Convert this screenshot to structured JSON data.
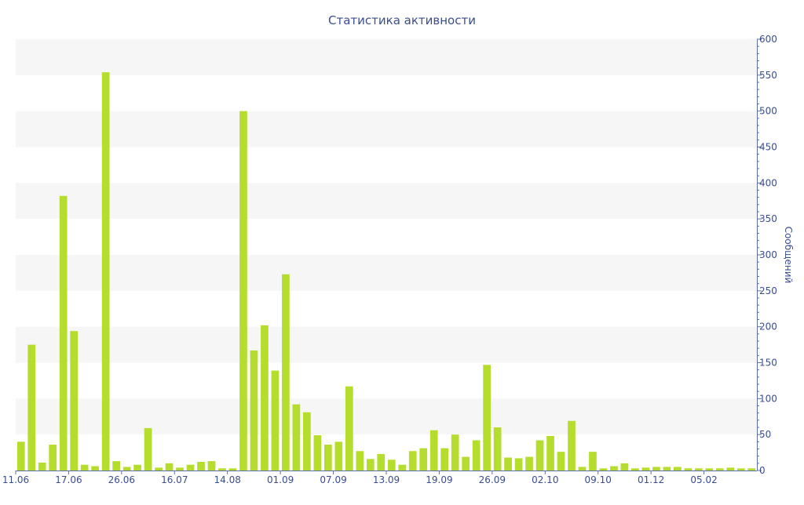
{
  "chart_data": {
    "type": "bar",
    "title": "Статистика активности",
    "xlabel": "",
    "ylabel": "Сообщений",
    "ylim": [
      0,
      600
    ],
    "y_ticks": [
      0,
      50,
      100,
      150,
      200,
      250,
      300,
      350,
      400,
      450,
      500,
      550,
      600
    ],
    "y_axis_side": "right",
    "grid": "alternating horizontal bands",
    "x_tick_labels": [
      "11.06",
      "17.06",
      "26.06",
      "16.07",
      "14.08",
      "01.09",
      "07.09",
      "13.09",
      "19.09",
      "26.09",
      "02.10",
      "09.10",
      "01.12",
      "05.02"
    ],
    "values": [
      40,
      175,
      11,
      36,
      382,
      194,
      8,
      6,
      554,
      13,
      5,
      8,
      59,
      4,
      10,
      4,
      8,
      12,
      13,
      3,
      3,
      500,
      167,
      202,
      139,
      273,
      92,
      81,
      49,
      36,
      40,
      117,
      27,
      16,
      23,
      15,
      8,
      27,
      31,
      56,
      31,
      50,
      19,
      42,
      147,
      60,
      18,
      17,
      19,
      42,
      48,
      26,
      69,
      5,
      26,
      3,
      6,
      10,
      3,
      4,
      5,
      5,
      5,
      3,
      3,
      3,
      3,
      4,
      3,
      3
    ],
    "colors": {
      "bar": "#b5dd2d",
      "axis": "#5b6ea8",
      "text": "#3a4d8f",
      "band": "#f6f6f6"
    }
  }
}
